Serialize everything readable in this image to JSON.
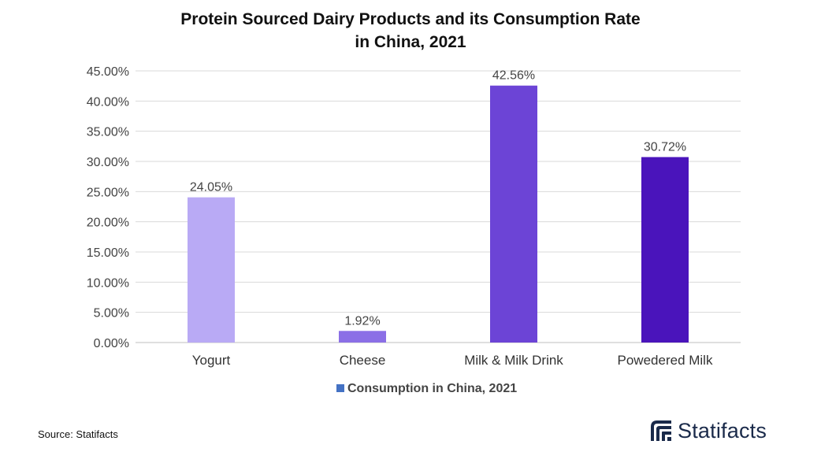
{
  "source": "Source: Statifacts",
  "logo": {
    "text": "Statifacts",
    "color": "#1a2a4a"
  },
  "chart_data": {
    "type": "bar",
    "title_lines": [
      "Protein Sourced Dairy Products and its Consumption Rate",
      "in China, 2021"
    ],
    "categories": [
      "Yogurt",
      "Cheese",
      "Milk & Milk Drink",
      "Powedered Milk"
    ],
    "series": [
      {
        "name": "Consumption in China, 2021",
        "values": [
          24.05,
          1.92,
          42.56,
          30.72
        ]
      }
    ],
    "data_labels": [
      "24.05%",
      "1.92%",
      "42.56%",
      "30.72%"
    ],
    "bar_colors": [
      "#b9aaf5",
      "#8b6fe6",
      "#6c44d6",
      "#4a14bb"
    ],
    "legend_color": "#4472c4",
    "y_ticks": [
      "0.00%",
      "5.00%",
      "10.00%",
      "15.00%",
      "20.00%",
      "25.00%",
      "30.00%",
      "35.00%",
      "40.00%",
      "45.00%"
    ],
    "ylim": [
      0,
      45
    ],
    "grid": true,
    "legend_position": "bottom"
  }
}
